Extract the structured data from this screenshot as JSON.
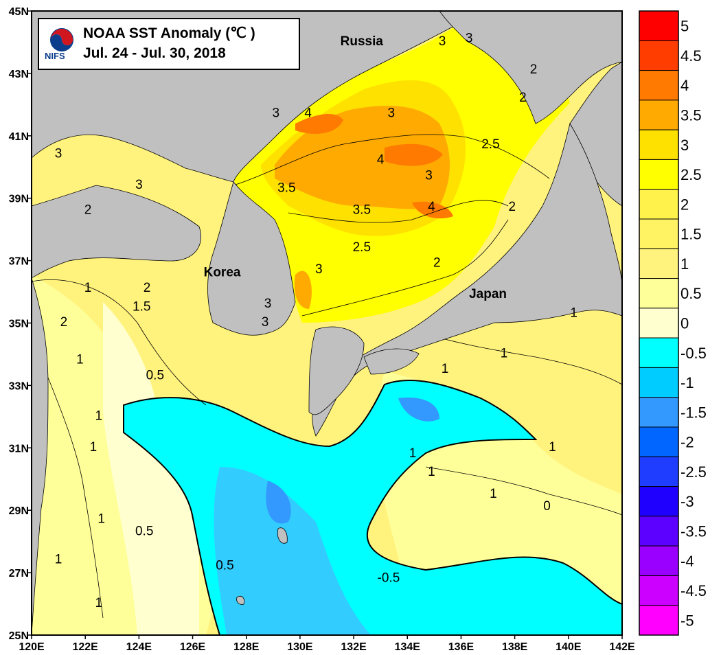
{
  "title": {
    "line1": "NOAA SST Anomaly (℃ )",
    "line2": "Jul. 24 - Jul. 30,  2018",
    "logo_text": "NIFS"
  },
  "map": {
    "x_ticks": [
      "120E",
      "122E",
      "124E",
      "126E",
      "128E",
      "130E",
      "132E",
      "134E",
      "136E",
      "138E",
      "140E",
      "142E"
    ],
    "y_ticks": [
      "45N",
      "43N",
      "41N",
      "39N",
      "37N",
      "35N",
      "33N",
      "31N",
      "29N",
      "27N",
      "25N"
    ],
    "place_labels": [
      {
        "text": "Russia",
        "lon": 132.3,
        "lat": 43.9
      },
      {
        "text": "Korea",
        "lon": 127.1,
        "lat": 36.5
      },
      {
        "text": "Japan",
        "lon": 137.0,
        "lat": 35.8
      }
    ],
    "contour_labels": [
      {
        "text": "3",
        "lon": 136.3,
        "lat": 44.0
      },
      {
        "text": "3",
        "lon": 135.3,
        "lat": 43.9
      },
      {
        "text": "2",
        "lon": 138.7,
        "lat": 43.0
      },
      {
        "text": "2",
        "lon": 138.3,
        "lat": 42.1
      },
      {
        "text": "3",
        "lon": 129.1,
        "lat": 41.6
      },
      {
        "text": "4",
        "lon": 130.3,
        "lat": 41.6
      },
      {
        "text": "3",
        "lon": 133.4,
        "lat": 41.6
      },
      {
        "text": "2.5",
        "lon": 137.1,
        "lat": 40.6
      },
      {
        "text": "3",
        "lon": 121.0,
        "lat": 40.3
      },
      {
        "text": "4",
        "lon": 133.0,
        "lat": 40.1
      },
      {
        "text": "3",
        "lon": 134.8,
        "lat": 39.6
      },
      {
        "text": "3",
        "lon": 124.0,
        "lat": 39.3
      },
      {
        "text": "3.5",
        "lon": 129.5,
        "lat": 39.2
      },
      {
        "text": "3.5",
        "lon": 132.3,
        "lat": 38.5
      },
      {
        "text": "4",
        "lon": 134.9,
        "lat": 38.6
      },
      {
        "text": "2",
        "lon": 137.9,
        "lat": 38.6
      },
      {
        "text": "2",
        "lon": 122.1,
        "lat": 38.5
      },
      {
        "text": "2.5",
        "lon": 132.3,
        "lat": 37.3
      },
      {
        "text": "3",
        "lon": 130.7,
        "lat": 36.6
      },
      {
        "text": "2",
        "lon": 135.1,
        "lat": 36.8
      },
      {
        "text": "1",
        "lon": 122.1,
        "lat": 36.0
      },
      {
        "text": "2",
        "lon": 124.3,
        "lat": 36.0
      },
      {
        "text": "1.5",
        "lon": 124.1,
        "lat": 35.4
      },
      {
        "text": "2",
        "lon": 121.2,
        "lat": 34.9
      },
      {
        "text": "3",
        "lon": 128.8,
        "lat": 35.5
      },
      {
        "text": "3",
        "lon": 128.7,
        "lat": 34.9
      },
      {
        "text": "1",
        "lon": 140.2,
        "lat": 35.2
      },
      {
        "text": "1",
        "lon": 121.8,
        "lat": 33.7
      },
      {
        "text": "0.5",
        "lon": 124.6,
        "lat": 33.2
      },
      {
        "text": "1",
        "lon": 137.6,
        "lat": 33.9
      },
      {
        "text": "1",
        "lon": 135.4,
        "lat": 33.4
      },
      {
        "text": "1",
        "lon": 122.5,
        "lat": 31.9
      },
      {
        "text": "1",
        "lon": 122.3,
        "lat": 30.9
      },
      {
        "text": "1",
        "lon": 134.2,
        "lat": 30.7
      },
      {
        "text": "1",
        "lon": 139.4,
        "lat": 30.9
      },
      {
        "text": "1",
        "lon": 134.9,
        "lat": 30.1
      },
      {
        "text": "1",
        "lon": 137.2,
        "lat": 29.4
      },
      {
        "text": "1",
        "lon": 122.6,
        "lat": 28.6
      },
      {
        "text": "0.5",
        "lon": 124.2,
        "lat": 28.2
      },
      {
        "text": "0.5",
        "lon": 127.2,
        "lat": 27.1
      },
      {
        "text": "-0.5",
        "lon": 133.3,
        "lat": 26.7
      },
      {
        "text": "1",
        "lon": 121.0,
        "lat": 27.3
      },
      {
        "text": "1",
        "lon": 122.5,
        "lat": 25.9
      },
      {
        "text": "0",
        "lon": 139.2,
        "lat": 29.0
      }
    ]
  },
  "colorbar": {
    "labels": [
      "5",
      "4.5",
      "4",
      "3.5",
      "3",
      "2.5",
      "2",
      "1.5",
      "1",
      "0.5",
      "0",
      "-0.5",
      "-1",
      "-1.5",
      "-2",
      "-2.5",
      "-3",
      "-3.5",
      "-4",
      "-4.5",
      "-5"
    ],
    "colors": [
      "#ff0000",
      "#ff3d00",
      "#ff7a00",
      "#ffaa00",
      "#ffe100",
      "#ffff00",
      "#fff24a",
      "#fff263",
      "#fff27d",
      "#ffff99",
      "#ffffcf",
      "#00ffff",
      "#00ccff",
      "#3399ff",
      "#0066ff",
      "#1f3dff",
      "#1f00ff",
      "#5c00ff",
      "#9900ff",
      "#cc00ff",
      "#ff00ff"
    ]
  },
  "colors": {
    "land": "#c0c0c0",
    "frame": "#000000"
  }
}
